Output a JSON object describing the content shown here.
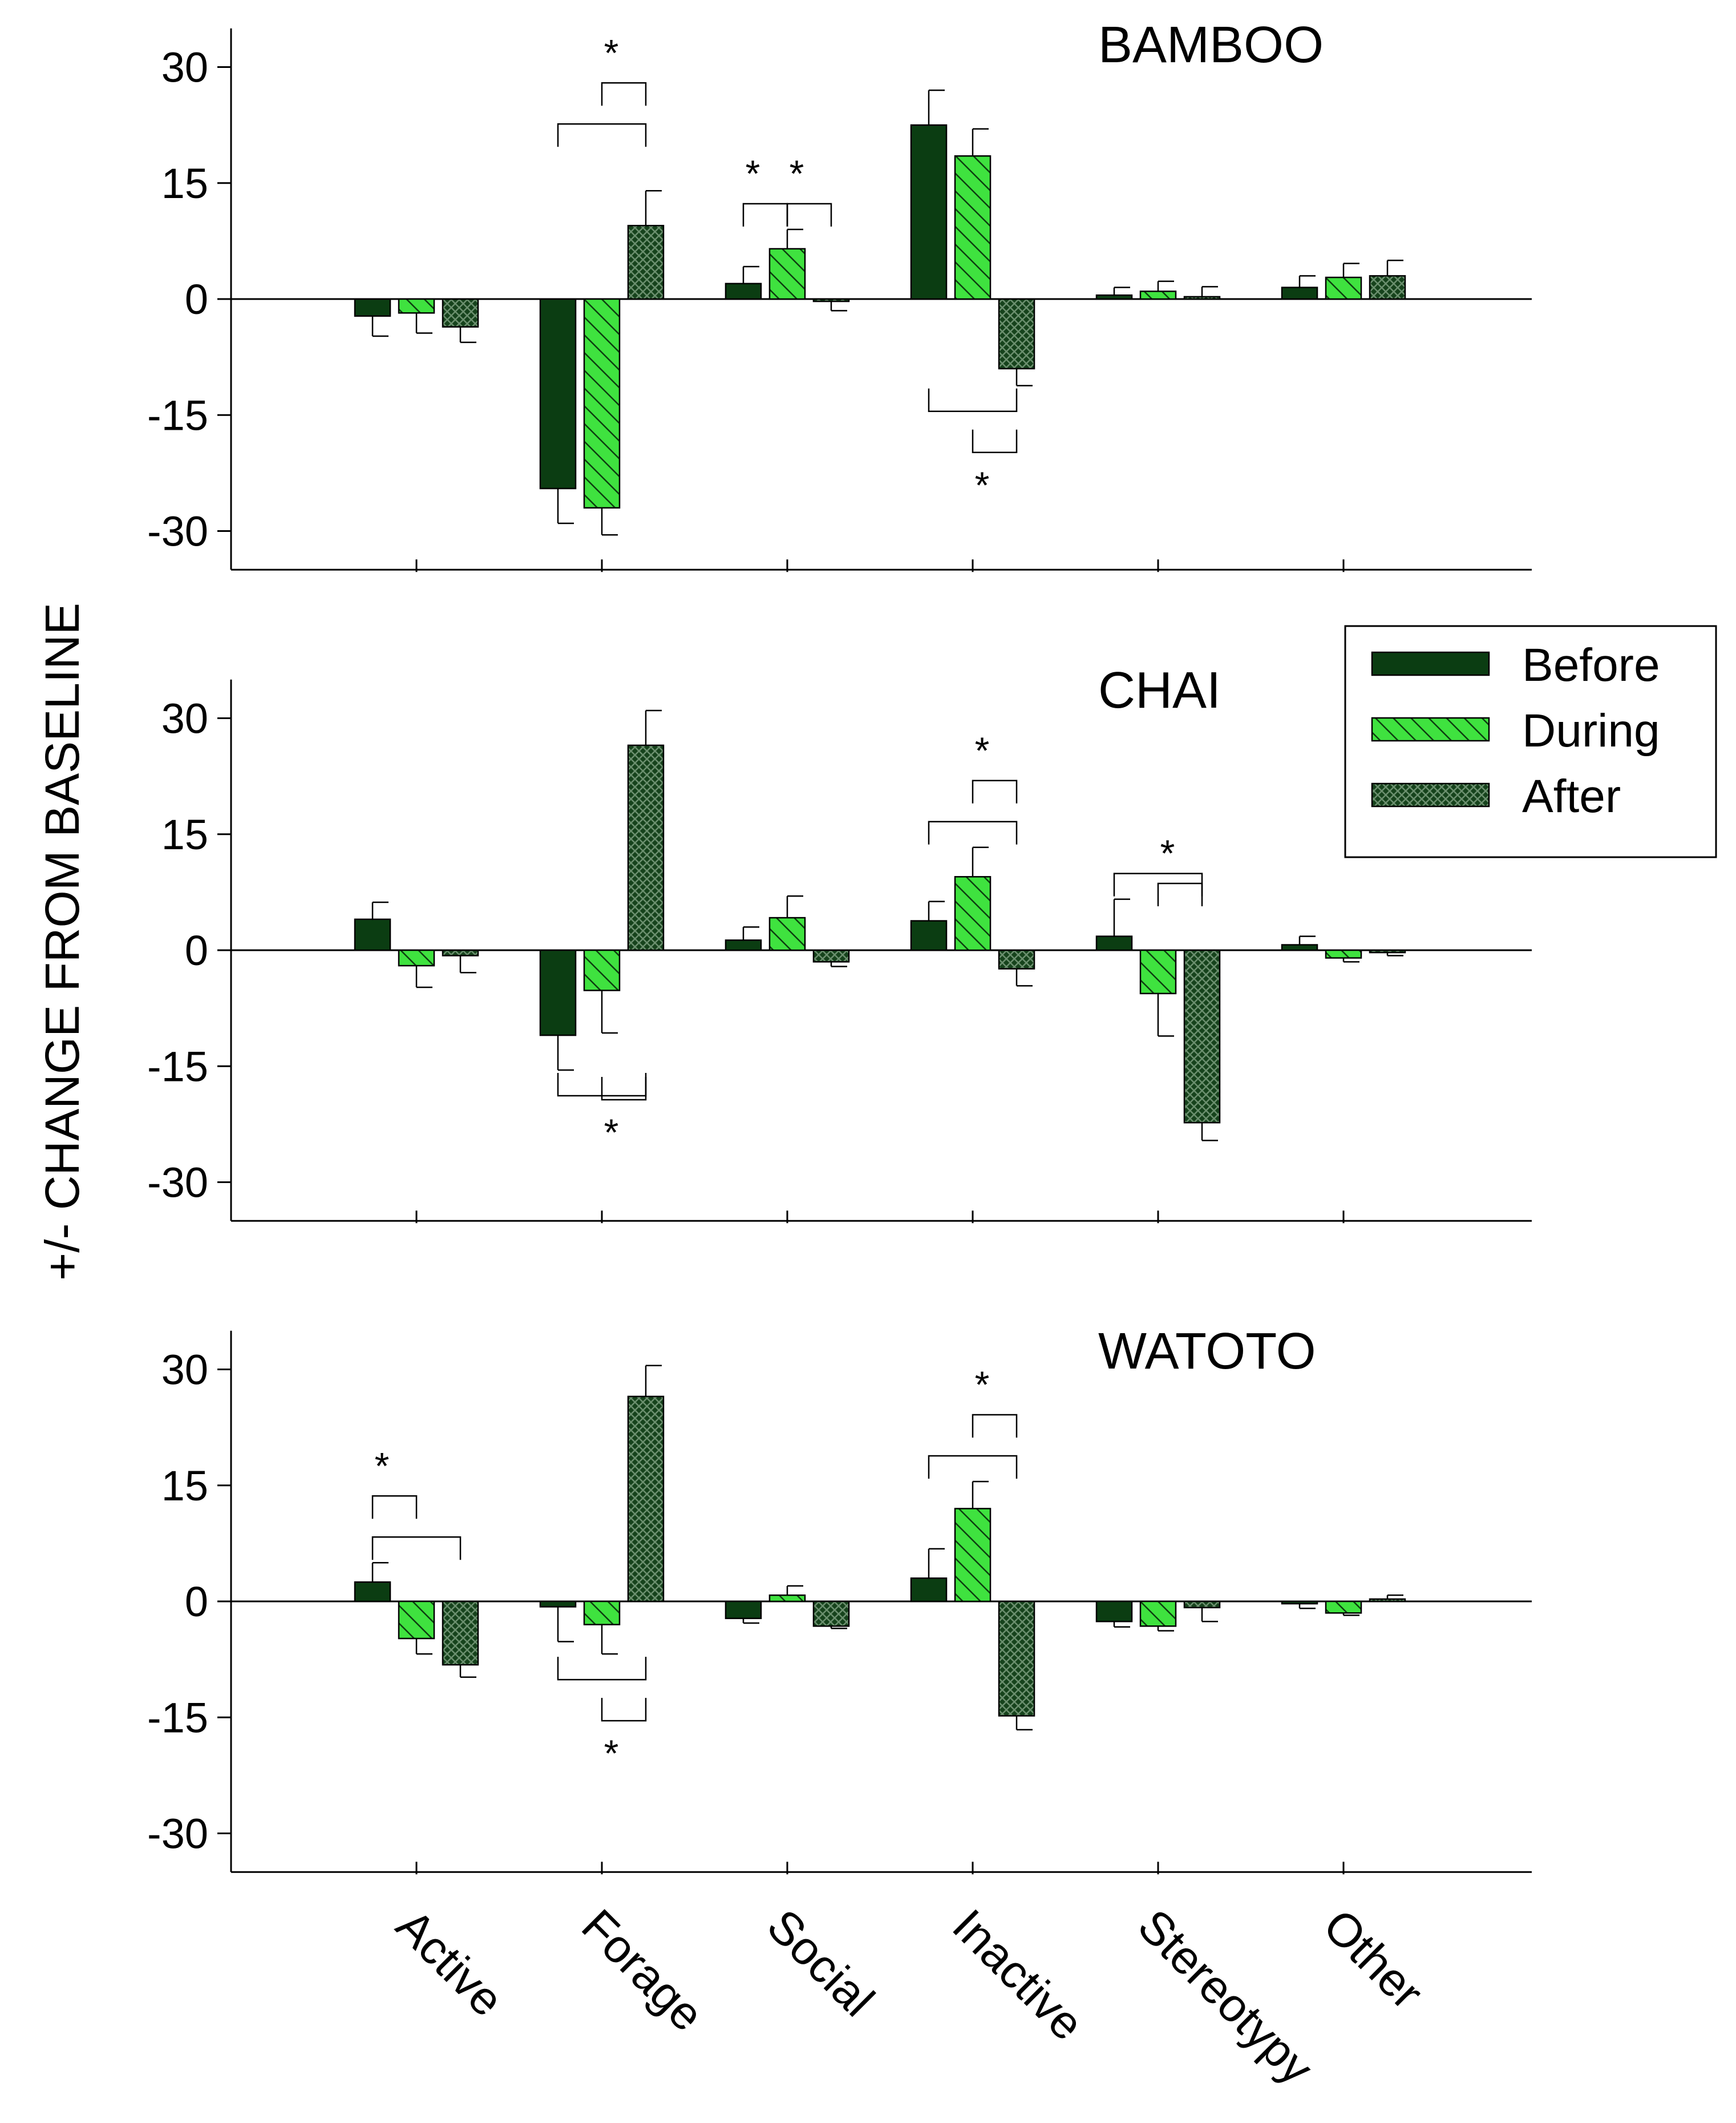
{
  "ylabel": "+/- CHANGE FROM BASELINE",
  "legend": {
    "items": [
      {
        "label": "Before",
        "pattern": "solid"
      },
      {
        "label": "During",
        "pattern": "hatch"
      },
      {
        "label": "After",
        "pattern": "crosshatch"
      }
    ]
  },
  "colors": {
    "before": "#0b3d12",
    "during": "#3fe23f",
    "after": "#16431c",
    "axis": "#000000"
  },
  "chart_data": [
    {
      "type": "bar",
      "title": "BAMBOO",
      "categories": [
        "Active",
        "Forage",
        "Social",
        "Inactive",
        "Stereotypy",
        "Other"
      ],
      "yticks": [
        "30",
        "15",
        "0",
        "-15",
        "-30"
      ],
      "ylim": [
        -35,
        35
      ],
      "series": [
        {
          "name": "Before",
          "values": [
            -2.2,
            -24.5,
            2.0,
            22.5,
            0.5,
            1.5
          ],
          "errors": [
            2.6,
            4.5,
            2.2,
            4.5,
            1.0,
            1.5
          ]
        },
        {
          "name": "During",
          "values": [
            -1.8,
            -27.0,
            6.5,
            18.5,
            1.0,
            2.8
          ],
          "errors": [
            2.6,
            3.5,
            2.5,
            3.5,
            1.3,
            1.8
          ]
        },
        {
          "name": "After",
          "values": [
            -3.6,
            9.5,
            -0.3,
            -9.0,
            0.3,
            3.0
          ],
          "errors": [
            2.0,
            4.5,
            1.2,
            2.2,
            1.3,
            2.0
          ]
        }
      ],
      "significance": [
        {
          "category": "Forage",
          "from": "Before",
          "to": "After",
          "side": "above",
          "level": 2
        },
        {
          "category": "Forage",
          "from": "During",
          "to": "After",
          "side": "above",
          "level": 3,
          "label": "*"
        },
        {
          "category": "Social",
          "from": "Before",
          "to": "During",
          "side": "above",
          "level": 1,
          "label": "*"
        },
        {
          "category": "Social",
          "from": "During",
          "to": "After",
          "side": "above",
          "level": 1,
          "label": "*"
        },
        {
          "category": "Inactive",
          "from": "Before",
          "to": "After",
          "side": "below",
          "level": 1
        },
        {
          "category": "Inactive",
          "from": "During",
          "to": "After",
          "side": "below",
          "level": 2,
          "label": "*"
        }
      ]
    },
    {
      "type": "bar",
      "title": "CHAI",
      "categories": [
        "Active",
        "Forage",
        "Social",
        "Inactive",
        "Stereotypy",
        "Other"
      ],
      "yticks": [
        "30",
        "15",
        "0",
        "-15",
        "-30"
      ],
      "ylim": [
        -35,
        35
      ],
      "series": [
        {
          "name": "Before",
          "values": [
            4.0,
            -11.0,
            1.3,
            3.8,
            1.8,
            0.7
          ],
          "errors": [
            2.2,
            4.5,
            1.7,
            2.5,
            4.8,
            1.1
          ]
        },
        {
          "name": "During",
          "values": [
            -2.0,
            -5.2,
            4.2,
            9.5,
            -5.6,
            -1.0
          ],
          "errors": [
            2.8,
            5.5,
            2.8,
            3.8,
            5.5,
            0.5
          ]
        },
        {
          "name": "After",
          "values": [
            -0.7,
            26.5,
            -1.5,
            -2.4,
            -22.3,
            -0.3
          ],
          "errors": [
            2.2,
            4.5,
            0.6,
            2.2,
            2.3,
            0.4
          ]
        }
      ],
      "significance": [
        {
          "category": "Forage",
          "from": "Before",
          "to": "After",
          "side": "below",
          "level": 1
        },
        {
          "category": "Forage",
          "from": "During",
          "to": "After",
          "side": "below",
          "level": 2,
          "label": "*"
        },
        {
          "category": "Inactive",
          "from": "Before",
          "to": "After",
          "side": "above",
          "level": 1
        },
        {
          "category": "Inactive",
          "from": "During",
          "to": "After",
          "side": "above",
          "level": 2,
          "label": "*"
        },
        {
          "category": "Stereotypy",
          "from": "Before",
          "to": "After",
          "side": "above",
          "level": 1
        },
        {
          "category": "Stereotypy",
          "from": "During",
          "to": "After",
          "side": "above",
          "level": 2,
          "label": "*"
        }
      ]
    },
    {
      "type": "bar",
      "title": "WATOTO",
      "categories": [
        "Active",
        "Forage",
        "Social",
        "Inactive",
        "Stereotypy",
        "Other"
      ],
      "yticks": [
        "30",
        "15",
        "0",
        "-15",
        "-30"
      ],
      "ylim": [
        -35,
        35
      ],
      "series": [
        {
          "name": "Before",
          "values": [
            2.5,
            -0.7,
            -2.2,
            3.0,
            -2.6,
            -0.3
          ],
          "errors": [
            2.5,
            4.5,
            0.6,
            3.8,
            0.7,
            0.6
          ]
        },
        {
          "name": "During",
          "values": [
            -4.8,
            -3.0,
            0.8,
            12.0,
            -3.2,
            -1.5
          ],
          "errors": [
            2.0,
            3.8,
            1.2,
            3.5,
            0.6,
            0.3
          ]
        },
        {
          "name": "After",
          "values": [
            -8.2,
            26.5,
            -3.2,
            -14.8,
            -0.8,
            0.3
          ],
          "errors": [
            1.6,
            4.0,
            0.3,
            1.8,
            1.8,
            0.5
          ]
        }
      ],
      "significance": [
        {
          "category": "Active",
          "from": "Before",
          "to": "After",
          "side": "above",
          "level": 1
        },
        {
          "category": "Active",
          "from": "Before",
          "to": "During",
          "side": "above",
          "level": 2,
          "label": "*"
        },
        {
          "category": "Forage",
          "from": "Before",
          "to": "After",
          "side": "below",
          "level": 1
        },
        {
          "category": "Forage",
          "from": "During",
          "to": "After",
          "side": "below",
          "level": 2,
          "label": "*"
        },
        {
          "category": "Inactive",
          "from": "Before",
          "to": "After",
          "side": "above",
          "level": 1
        },
        {
          "category": "Inactive",
          "from": "During",
          "to": "After",
          "side": "above",
          "level": 2,
          "label": "*"
        }
      ]
    }
  ]
}
